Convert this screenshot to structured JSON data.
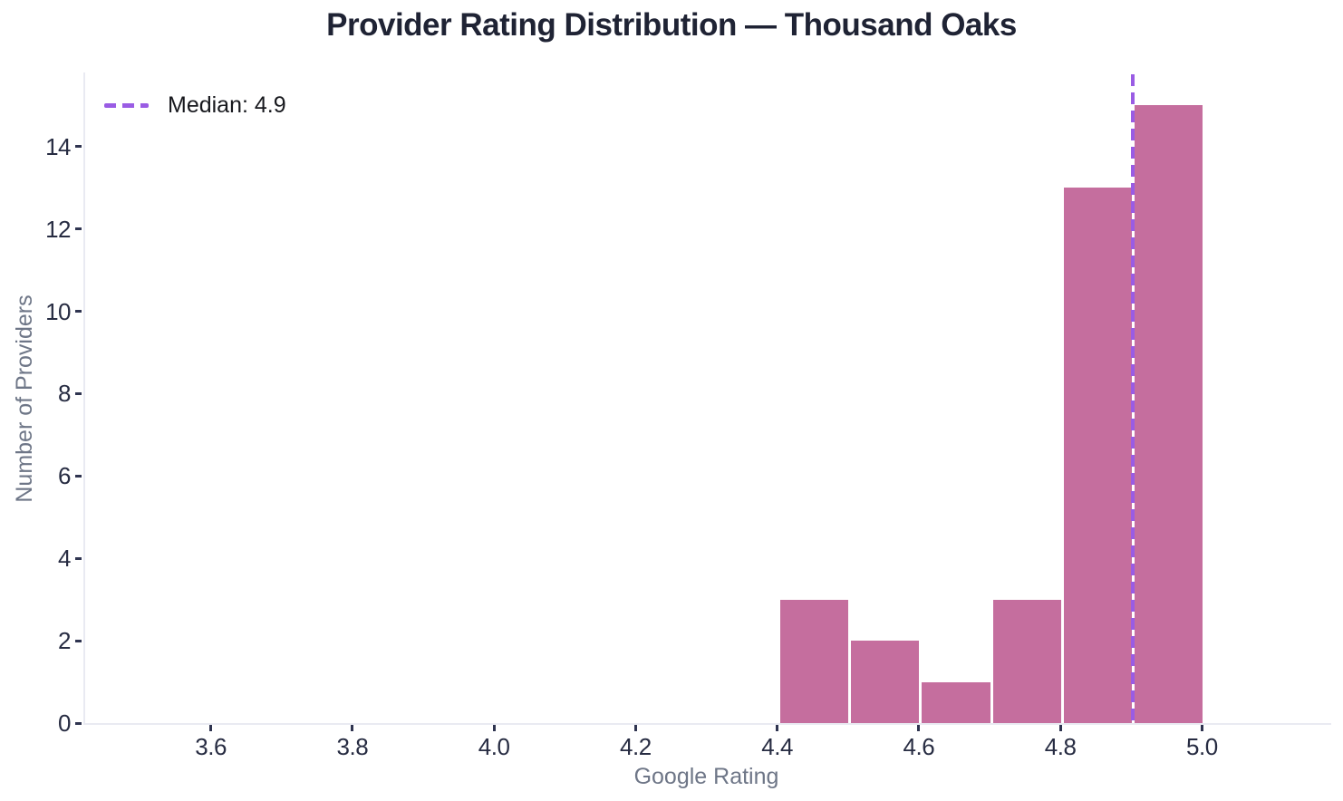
{
  "chart_data": {
    "type": "bar",
    "subtype": "histogram",
    "title": "Provider Rating Distribution — Thousand Oaks",
    "xlabel": "Google Rating",
    "ylabel": "Number of Providers",
    "bin_edges": [
      4.4,
      4.5,
      4.6,
      4.7,
      4.8,
      4.9,
      5.0
    ],
    "counts": [
      3,
      2,
      1,
      3,
      13,
      15
    ],
    "median": 4.9,
    "median_label": "Median: 4.9",
    "x_ticks": [
      {
        "value": 3.6,
        "label": "3.6"
      },
      {
        "value": 3.8,
        "label": "3.8"
      },
      {
        "value": 4.0,
        "label": "4.0"
      },
      {
        "value": 4.2,
        "label": "4.2"
      },
      {
        "value": 4.4,
        "label": "4.4"
      },
      {
        "value": 4.6,
        "label": "4.6"
      },
      {
        "value": 4.8,
        "label": "4.8"
      },
      {
        "value": 5.0,
        "label": "5.0"
      }
    ],
    "y_ticks": [
      {
        "value": 0,
        "label": "0"
      },
      {
        "value": 2,
        "label": "2"
      },
      {
        "value": 4,
        "label": "4"
      },
      {
        "value": 6,
        "label": "6"
      },
      {
        "value": 8,
        "label": "8"
      },
      {
        "value": 10,
        "label": "10"
      },
      {
        "value": 12,
        "label": "12"
      },
      {
        "value": 14,
        "label": "14"
      }
    ],
    "xlim": [
      3.42,
      5.18
    ],
    "ylim": [
      0,
      15.8
    ],
    "grid": false,
    "legend_position": "upper left",
    "colors": {
      "bar": "#c56e9e",
      "bar_edge": "#ffffff",
      "median_line": "#9a5ce4",
      "title_text": "#1f2334",
      "tick_text": "#272c42",
      "axis_label_text": "#6e7687",
      "spine": "#e9eaf2",
      "background": "#ffffff"
    }
  }
}
